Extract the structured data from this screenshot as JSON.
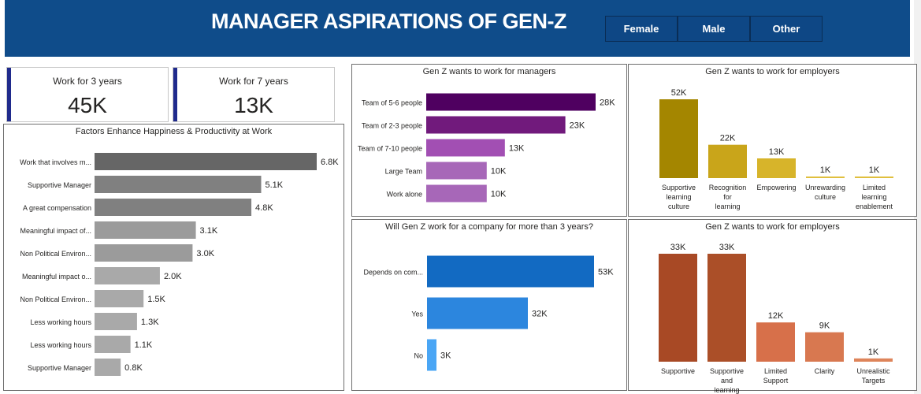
{
  "header": {
    "title": "MANAGER ASPIRATIONS OF GEN-Z",
    "slicer": [
      "Female",
      "Male",
      "Other"
    ]
  },
  "kpis": [
    {
      "label": "Work for 3 years",
      "value": "45K"
    },
    {
      "label": "Work for 7 years",
      "value": "13K"
    }
  ],
  "chart_data": [
    {
      "id": "factors",
      "type": "bar",
      "orientation": "horizontal",
      "title": "Factors Enhance Happiness & Productivity at Work",
      "categories": [
        "Work that involves m...",
        "Supportive Manager",
        "A great compensation",
        "Meaningful impact of...",
        "Non Political Environ...",
        "Meaningful impact o...",
        "Non Political Environ...",
        "Less working hours",
        "Less working hours",
        "Supportive Manager"
      ],
      "values": [
        6.8,
        5.1,
        4.8,
        3.1,
        3.0,
        2.0,
        1.5,
        1.3,
        1.1,
        0.8
      ],
      "labels": [
        "6.8K",
        "5.1K",
        "4.8K",
        "3.1K",
        "3.0K",
        "2.0K",
        "1.5K",
        "1.3K",
        "1.1K",
        "0.8K"
      ],
      "unit": "thousands",
      "colors": [
        "#666666",
        "#808080",
        "#808080",
        "#9b9b9b",
        "#9b9b9b",
        "#a9a9a9",
        "#a9a9a9",
        "#a9a9a9",
        "#a9a9a9",
        "#a9a9a9"
      ]
    },
    {
      "id": "managers",
      "type": "bar",
      "orientation": "horizontal",
      "title": "Gen Z wants to work for managers",
      "categories": [
        "Team of 5-6 people",
        "Team of 2-3 people",
        "Team of 7-10 people",
        "Large Team",
        "Work alone"
      ],
      "values": [
        28,
        23,
        13,
        10,
        10
      ],
      "labels": [
        "28K",
        "23K",
        "13K",
        "10K",
        "10K"
      ],
      "unit": "thousands",
      "colors": [
        "#4f0060",
        "#711a7c",
        "#a24fb3",
        "#a767b8",
        "#a767b8"
      ]
    },
    {
      "id": "employers1",
      "type": "bar",
      "orientation": "vertical",
      "title": "Gen Z wants to work for employers",
      "categories": [
        "Supportive learning culture",
        "Recognition for learning",
        "Empowering",
        "Unrewarding culture",
        "Limited learning enablement"
      ],
      "values": [
        52,
        22,
        13,
        1,
        1
      ],
      "labels": [
        "52K",
        "22K",
        "13K",
        "1K",
        "1K"
      ],
      "unit": "thousands",
      "colors": [
        "#a48600",
        "#c9a51a",
        "#d7b42a",
        "#e0bf3e",
        "#e0bf3e"
      ]
    },
    {
      "id": "more_than_3",
      "type": "bar",
      "orientation": "horizontal",
      "title": "Will Gen Z work for a company for more than 3 years?",
      "categories": [
        "Depends on com...",
        "Yes",
        "No"
      ],
      "values": [
        53,
        32,
        3
      ],
      "labels": [
        "53K",
        "32K",
        "3K"
      ],
      "unit": "thousands",
      "colors": [
        "#126ac2",
        "#2c86de",
        "#4aa6f5"
      ]
    },
    {
      "id": "employers2",
      "type": "bar",
      "orientation": "vertical",
      "title": "Gen Z wants to work for employers",
      "categories": [
        "Supportive",
        "Supportive and learning",
        "Limited Support",
        "Clarity",
        "Unrealistic Targets"
      ],
      "values": [
        33,
        33,
        12,
        9,
        1
      ],
      "labels": [
        "33K",
        "33K",
        "12K",
        "9K",
        "1K"
      ],
      "unit": "thousands",
      "colors": [
        "#a84925",
        "#ab4f28",
        "#d7704a",
        "#d87850",
        "#de845a"
      ]
    }
  ]
}
